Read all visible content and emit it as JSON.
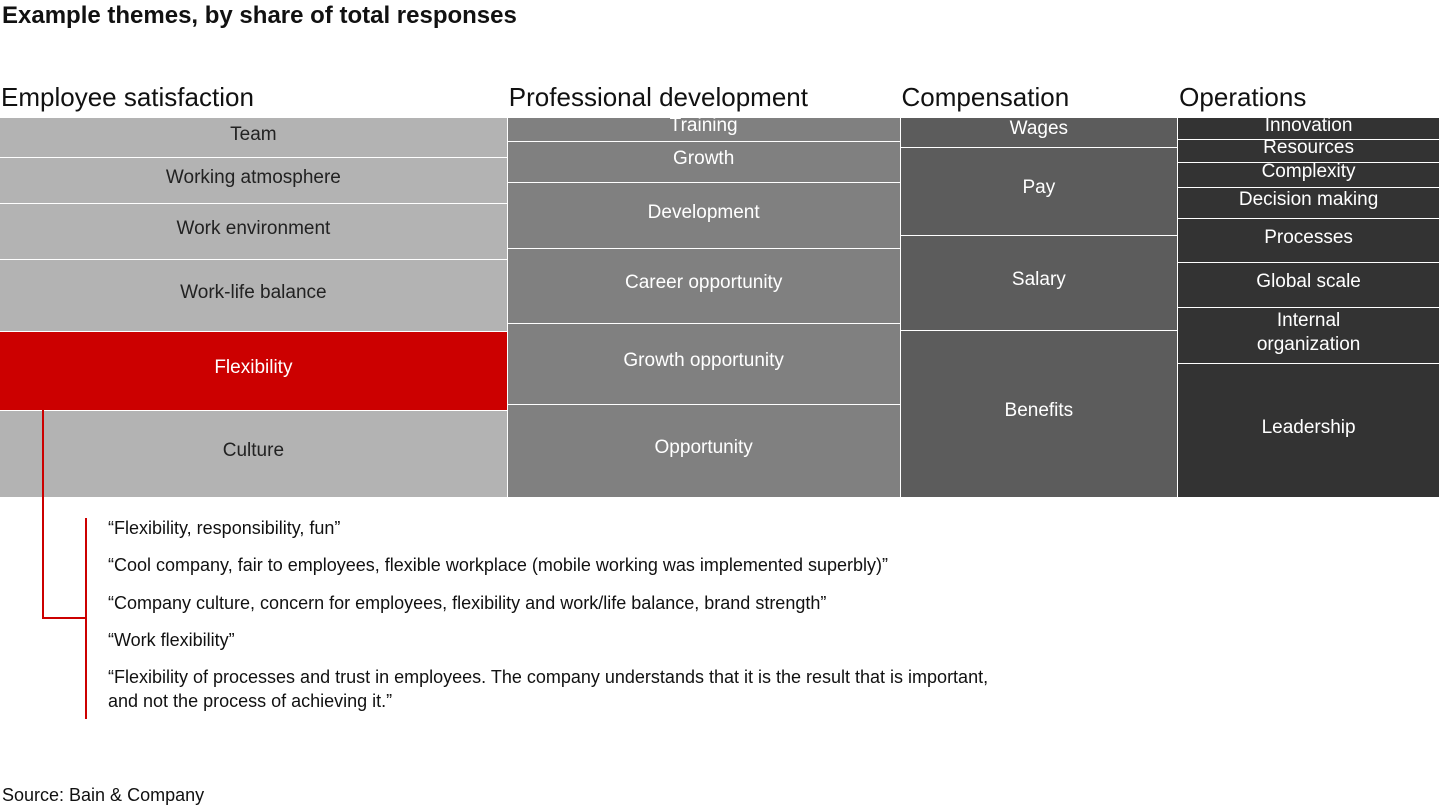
{
  "chart_data": {
    "type": "mekko",
    "title": "Example themes, by share of total responses",
    "groups": [
      {
        "name": "Employee satisfaction",
        "color": "#b3b3b3",
        "items": [
          {
            "label": "Team",
            "value": 3.7
          },
          {
            "label": "Working atmosphere",
            "value": 4.3
          },
          {
            "label": "Work environment",
            "value": 5.2
          },
          {
            "label": "Work-life balance",
            "value": 6.7
          },
          {
            "label": "Flexibility",
            "value": 7.3,
            "color": "#cc0000"
          },
          {
            "label": "Culture",
            "value": 8.1
          }
        ]
      },
      {
        "name": "Professional development",
        "color": "#808080",
        "items": [
          {
            "label": "Training",
            "value": 1.7
          },
          {
            "label": "Growth",
            "value": 3.0
          },
          {
            "label": "Development",
            "value": 4.7
          },
          {
            "label": "Career opportunity",
            "value": 5.4
          },
          {
            "label": "Growth opportunity",
            "value": 5.8
          },
          {
            "label": "Opportunity",
            "value": 6.7
          }
        ]
      },
      {
        "name": "Compensation",
        "color": "#5c5c5c",
        "items": [
          {
            "label": "Wages",
            "value": 1.5
          },
          {
            "label": "Pay",
            "value": 4.5
          },
          {
            "label": "Salary",
            "value": 4.8
          },
          {
            "label": "Benefits",
            "value": 8.5
          }
        ]
      },
      {
        "name": "Operations",
        "color": "#333333",
        "items": [
          {
            "label": "Innovation",
            "value": 1.05
          },
          {
            "label": "Resources",
            "value": 1.1
          },
          {
            "label": "Complexity",
            "value": 1.2
          },
          {
            "label": "Decision making",
            "value": 1.5
          },
          {
            "label": "Processes",
            "value": 2.1
          },
          {
            "label": "Global scale",
            "value": 2.15
          },
          {
            "label": "Internal\norganization",
            "value": 2.7
          },
          {
            "label": "Leadership",
            "value": 6.4
          }
        ]
      }
    ],
    "quotes": [
      "“Flexibility, responsibility, fun”",
      "“Cool company, fair to employees, flexible workplace (mobile working was implemented superbly)”",
      "“Company culture, concern for employees, flexibility and work/life balance, brand strength”",
      "“Work flexibility”",
      "“Flexibility of processes and trust in employees. The company understands that it is the result that is important,\nand not the process of achieving it.”"
    ],
    "source": "Source: Bain & Company"
  }
}
